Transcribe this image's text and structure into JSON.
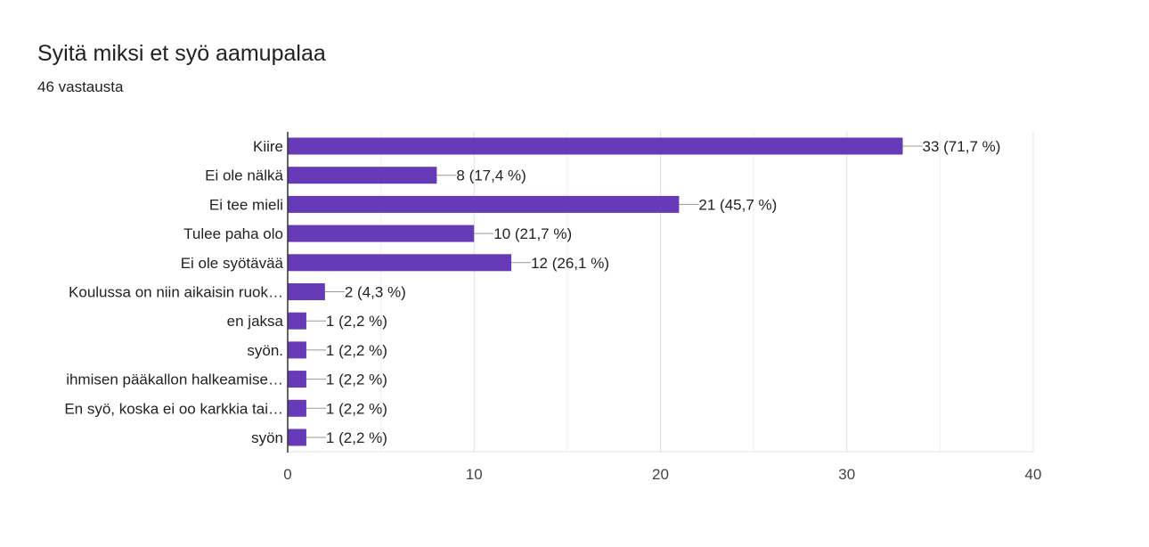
{
  "header": {
    "title": "Syitä miksi et syö aamupalaa",
    "responses": "46 vastausta"
  },
  "chart_data": {
    "type": "bar",
    "orientation": "horizontal",
    "categories": [
      "Kiire",
      "Ei ole nälkä",
      "Ei tee mieli",
      "Tulee paha olo",
      "Ei ole syötävää",
      "Koulussa on niin aikaisin ruok…",
      "en jaksa",
      "syön.",
      "ihmisen pääkallon halkeamise…",
      "En syö, koska ei oo karkkia tai…",
      "syön"
    ],
    "values": [
      33,
      8,
      21,
      10,
      12,
      2,
      1,
      1,
      1,
      1,
      1
    ],
    "data_labels": [
      "33 (71,7 %)",
      "8 (17,4 %)",
      "21 (45,7 %)",
      "10 (21,7 %)",
      "12 (26,1 %)",
      "2 (4,3 %)",
      "1 (2,2 %)",
      "1 (2,2 %)",
      "1 (2,2 %)",
      "1 (2,2 %)",
      "1 (2,2 %)"
    ],
    "xlim": [
      0,
      40
    ],
    "xticks": [
      "0",
      "10",
      "20",
      "30",
      "40"
    ],
    "grid": true,
    "bar_color": "#673ab7"
  }
}
